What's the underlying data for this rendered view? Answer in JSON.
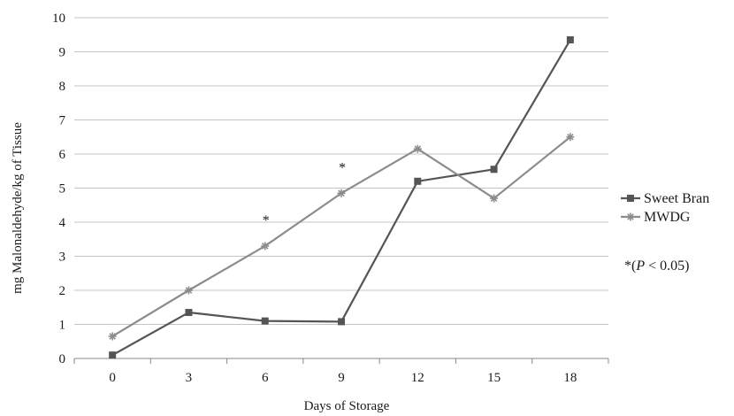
{
  "chart_data": {
    "type": "line",
    "xlabel": "Days of Storage",
    "ylabel": "mg Malonaldehyde/kg of Tissue",
    "categories": [
      "0",
      "3",
      "6",
      "9",
      "12",
      "15",
      "18"
    ],
    "ylim": [
      0,
      10
    ],
    "yticks": [
      "0",
      "1",
      "2",
      "3",
      "4",
      "5",
      "6",
      "7",
      "8",
      "9",
      "10"
    ],
    "grid": "horizontal",
    "legend_position": "right",
    "series": [
      {
        "name": "Sweet Bran",
        "marker": "square",
        "color": "#555555",
        "values": [
          0.1,
          1.35,
          1.1,
          1.08,
          5.2,
          5.55,
          9.35
        ]
      },
      {
        "name": "MWDG",
        "marker": "star",
        "color": "#8c8c8c",
        "values": [
          0.65,
          2.0,
          3.3,
          4.85,
          6.15,
          4.7,
          6.5
        ]
      }
    ],
    "significance": {
      "marker": "*",
      "categories": [
        "6",
        "9"
      ],
      "note_prefix": "*(",
      "note_italic": "P",
      "note_suffix": " < 0.05)"
    }
  }
}
